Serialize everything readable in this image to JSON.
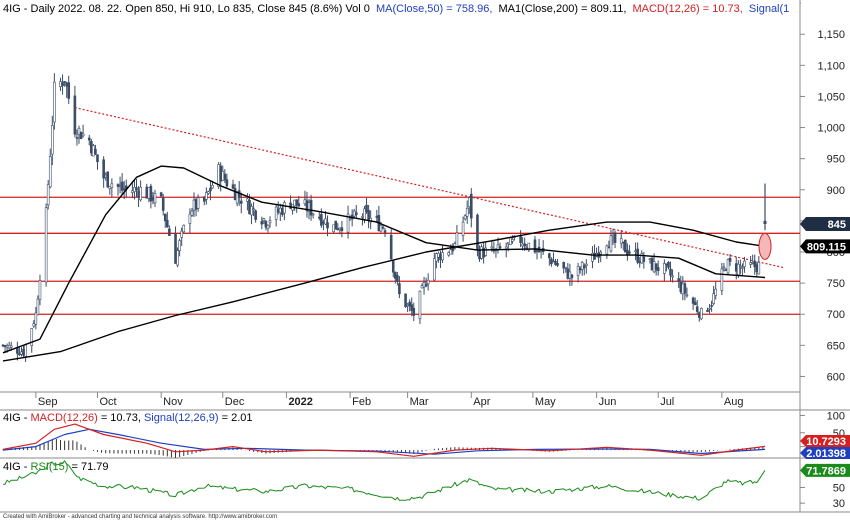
{
  "header": {
    "main_title": "4IG - Daily 2022. 08. 22. Open 850, Hi 910, Lo 835, Close 845 (8.6%) Vol 0",
    "ma50_label": "MA(Close,50) = 758.96,",
    "ma200_label": "MA1(Close,200) = 809.11,",
    "macd_label": "MACD(12,26) = 10.73,",
    "signal_label": "Signal(1"
  },
  "macd_header": {
    "prefix": "4IG - ",
    "macd_label": "MACD(12,26)",
    "macd_value": " = 10.73, ",
    "signal_label": "Signal(12,26,9)",
    "signal_value": " = 2.01"
  },
  "rsi_header": {
    "prefix": "4IG - ",
    "rsi_label": "RSI(15)",
    "rsi_value": " = 71.79"
  },
  "price_tags": {
    "close": "845",
    "ma200": "809.115",
    "macd": "10.7293",
    "signal": "2.01398",
    "rsi": "71.7869"
  },
  "footer": "Created with AmiBroker - advanced charting and technical analysis software. http://www.amibroker.com",
  "colors": {
    "candle": "#3a4c66",
    "ma": "#000000",
    "resistance": "#d42020",
    "trendline": "#d42020",
    "macd": "#d42020",
    "signal": "#2040c0",
    "histogram": "#333333",
    "rsi": "#1a8a1a",
    "axis_text": "#222222",
    "tag_close_bg": "#1f2d45",
    "tag_ma_bg": "#000000",
    "tag_macd_bg": "#d42020",
    "tag_signal_bg": "#2040c0",
    "tag_rsi_bg": "#1a8a1a",
    "highlight_fill": "#f5b8b8"
  },
  "chart_data": [
    {
      "type": "candlestick",
      "title": "4IG - Daily 2022. 08. 22.",
      "x_tick_labels": [
        "Sep",
        "Oct",
        "Nov",
        "Dec",
        "2022",
        "Feb",
        "Mar",
        "Apr",
        "May",
        "Jun",
        "Jul",
        "Aug"
      ],
      "x_range": [
        "2021-08-16",
        "2022-08-22"
      ],
      "y_ticks": [
        600,
        650,
        700,
        750,
        800,
        850,
        900,
        950,
        1000,
        1050,
        1100,
        1150,
        1200
      ],
      "y_tick_labels": [
        "600",
        "650",
        "700",
        "750",
        "800",
        "850",
        "900",
        "950",
        "1,000",
        "1,050",
        "1,100",
        "1,150",
        "1,200"
      ],
      "ylim": [
        575,
        1205
      ],
      "grid": false,
      "last_bar": {
        "open": 850,
        "high": 910,
        "low": 835,
        "close": 845,
        "change_pct": 8.6,
        "volume": 0
      },
      "price_path": [
        [
          "2021-08-16",
          650
        ],
        [
          "2021-08-26",
          640
        ],
        [
          "2021-09-01",
          700
        ],
        [
          "2021-09-06",
          860
        ],
        [
          "2021-09-10",
          1060
        ],
        [
          "2021-09-15",
          1080
        ],
        [
          "2021-09-20",
          1000
        ],
        [
          "2021-09-27",
          980
        ],
        [
          "2021-10-04",
          920
        ],
        [
          "2021-10-13",
          900
        ],
        [
          "2021-10-22",
          900
        ],
        [
          "2021-11-01",
          880
        ],
        [
          "2021-11-08",
          790
        ],
        [
          "2021-11-15",
          870
        ],
        [
          "2021-11-22",
          880
        ],
        [
          "2021-11-29",
          930
        ],
        [
          "2021-12-06",
          900
        ],
        [
          "2021-12-15",
          870
        ],
        [
          "2021-12-22",
          850
        ],
        [
          "2022-01-03",
          880
        ],
        [
          "2022-01-12",
          870
        ],
        [
          "2022-01-24",
          840
        ],
        [
          "2022-02-07",
          860
        ],
        [
          "2022-02-18",
          840
        ],
        [
          "2022-02-25",
          730
        ],
        [
          "2022-03-04",
          700
        ],
        [
          "2022-03-14",
          790
        ],
        [
          "2022-03-24",
          810
        ],
        [
          "2022-03-31",
          880
        ],
        [
          "2022-04-04",
          800
        ],
        [
          "2022-04-13",
          800
        ],
        [
          "2022-04-25",
          820
        ],
        [
          "2022-05-09",
          790
        ],
        [
          "2022-05-20",
          760
        ],
        [
          "2022-05-30",
          790
        ],
        [
          "2022-06-06",
          820
        ],
        [
          "2022-06-13",
          810
        ],
        [
          "2022-06-27",
          780
        ],
        [
          "2022-07-05",
          770
        ],
        [
          "2022-07-13",
          740
        ],
        [
          "2022-07-22",
          700
        ],
        [
          "2022-07-27",
          720
        ],
        [
          "2022-08-03",
          780
        ],
        [
          "2022-08-12",
          775
        ],
        [
          "2022-08-19",
          778
        ],
        [
          "2022-08-22",
          845
        ]
      ],
      "ma50": [
        [
          "2021-08-16",
          638
        ],
        [
          "2021-09-03",
          660
        ],
        [
          "2021-09-17",
          750
        ],
        [
          "2021-10-05",
          860
        ],
        [
          "2021-10-20",
          920
        ],
        [
          "2021-11-01",
          938
        ],
        [
          "2021-11-12",
          935
        ],
        [
          "2021-12-01",
          905
        ],
        [
          "2021-12-20",
          880
        ],
        [
          "2022-01-17",
          865
        ],
        [
          "2022-02-14",
          848
        ],
        [
          "2022-03-10",
          815
        ],
        [
          "2022-04-04",
          803
        ],
        [
          "2022-05-02",
          805
        ],
        [
          "2022-05-30",
          795
        ],
        [
          "2022-06-20",
          795
        ],
        [
          "2022-07-11",
          790
        ],
        [
          "2022-07-29",
          765
        ],
        [
          "2022-08-22",
          759
        ]
      ],
      "ma200": [
        [
          "2021-08-16",
          625
        ],
        [
          "2021-09-13",
          640
        ],
        [
          "2021-10-11",
          672
        ],
        [
          "2021-11-08",
          698
        ],
        [
          "2021-12-06",
          720
        ],
        [
          "2022-01-10",
          750
        ],
        [
          "2022-02-07",
          775
        ],
        [
          "2022-03-10",
          800
        ],
        [
          "2022-04-11",
          818
        ],
        [
          "2022-05-09",
          835
        ],
        [
          "2022-06-06",
          848
        ],
        [
          "2022-06-27",
          848
        ],
        [
          "2022-07-18",
          835
        ],
        [
          "2022-08-08",
          816
        ],
        [
          "2022-08-22",
          809
        ]
      ],
      "support_resistance_levels": [
        700,
        753,
        830,
        888
      ],
      "descending_trendline": [
        [
          "2021-09-20",
          1032
        ],
        [
          "2022-08-31",
          775
        ]
      ],
      "highlight": {
        "date": "2022-08-22",
        "value": 809
      }
    },
    {
      "type": "line",
      "title": "MACD(12,26)",
      "y_ticks": [
        10,
        50,
        100
      ],
      "ylim": [
        -20,
        110
      ],
      "series": [
        {
          "name": "MACD(12,26)",
          "last": 10.73,
          "points": [
            [
              "2021-08-16",
              2
            ],
            [
              "2021-09-01",
              20
            ],
            [
              "2021-09-10",
              60
            ],
            [
              "2021-09-20",
              75
            ],
            [
              "2021-10-04",
              45
            ],
            [
              "2021-10-25",
              20
            ],
            [
              "2021-11-08",
              -5
            ],
            [
              "2021-11-22",
              0
            ],
            [
              "2021-12-06",
              10
            ],
            [
              "2021-12-22",
              -5
            ],
            [
              "2022-01-17",
              0
            ],
            [
              "2022-02-14",
              -5
            ],
            [
              "2022-03-04",
              -18
            ],
            [
              "2022-03-24",
              0
            ],
            [
              "2022-04-11",
              5
            ],
            [
              "2022-05-09",
              -2
            ],
            [
              "2022-06-06",
              8
            ],
            [
              "2022-06-27",
              0
            ],
            [
              "2022-07-22",
              -15
            ],
            [
              "2022-08-08",
              0
            ],
            [
              "2022-08-22",
              10.73
            ]
          ]
        },
        {
          "name": "Signal(12,26,9)",
          "last": 2.01,
          "points": [
            [
              "2021-08-16",
              0
            ],
            [
              "2021-09-01",
              10
            ],
            [
              "2021-09-15",
              45
            ],
            [
              "2021-09-27",
              60
            ],
            [
              "2021-10-11",
              45
            ],
            [
              "2021-11-01",
              20
            ],
            [
              "2021-11-22",
              2
            ],
            [
              "2021-12-13",
              5
            ],
            [
              "2022-01-10",
              0
            ],
            [
              "2022-02-14",
              -3
            ],
            [
              "2022-03-14",
              -12
            ],
            [
              "2022-04-04",
              -2
            ],
            [
              "2022-05-02",
              2
            ],
            [
              "2022-06-06",
              3
            ],
            [
              "2022-06-27",
              2
            ],
            [
              "2022-07-22",
              -10
            ],
            [
              "2022-08-08",
              -3
            ],
            [
              "2022-08-22",
              2.01
            ]
          ]
        }
      ]
    },
    {
      "type": "line",
      "title": "RSI(15)",
      "y_ticks": [
        30,
        50
      ],
      "ylim": [
        20,
        85
      ],
      "series": [
        {
          "name": "RSI(15)",
          "last": 71.79,
          "points": [
            [
              "2021-08-16",
              55
            ],
            [
              "2021-09-01",
              68
            ],
            [
              "2021-09-08",
              80
            ],
            [
              "2021-09-15",
              82
            ],
            [
              "2021-09-22",
              62
            ],
            [
              "2021-10-04",
              52
            ],
            [
              "2021-10-20",
              50
            ],
            [
              "2021-11-08",
              40
            ],
            [
              "2021-11-22",
              52
            ],
            [
              "2021-12-06",
              48
            ],
            [
              "2021-12-22",
              45
            ],
            [
              "2022-01-10",
              52
            ],
            [
              "2022-02-01",
              48
            ],
            [
              "2022-02-25",
              36
            ],
            [
              "2022-03-07",
              38
            ],
            [
              "2022-03-31",
              60
            ],
            [
              "2022-04-11",
              48
            ],
            [
              "2022-05-09",
              45
            ],
            [
              "2022-06-06",
              52
            ],
            [
              "2022-06-27",
              44
            ],
            [
              "2022-07-22",
              36
            ],
            [
              "2022-08-03",
              58
            ],
            [
              "2022-08-12",
              55
            ],
            [
              "2022-08-19",
              58
            ],
            [
              "2022-08-22",
              71.79
            ]
          ]
        }
      ]
    }
  ]
}
